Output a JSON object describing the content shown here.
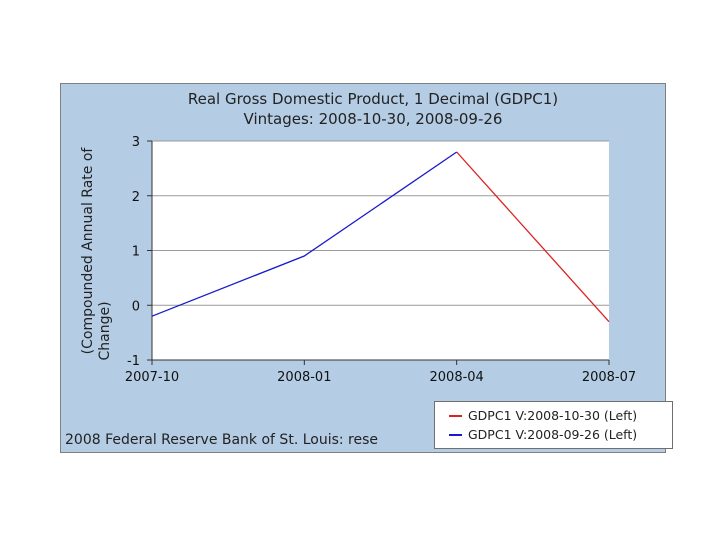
{
  "chart_data": {
    "type": "line",
    "title_lines": [
      "Real Gross Domestic Product, 1 Decimal (GDPC1)",
      "Vintages: 2008-10-30, 2008-09-26"
    ],
    "ylabel_lines": [
      "(Compounded Annual Rate of",
      "Change)"
    ],
    "xlabel": "",
    "x_ticks": [
      "2007-10",
      "2008-01",
      "2008-04",
      "2008-07"
    ],
    "y_ticks": [
      "-1",
      "0",
      "1",
      "2",
      "3"
    ],
    "ylim": [
      -1,
      3
    ],
    "grid": true,
    "legend_position": "bottom-right",
    "series": [
      {
        "name": "GDPC1 V:2008-10-30 (Left)",
        "color": "#dd2222",
        "points": [
          {
            "x": "2008-04",
            "y": 2.8
          },
          {
            "x": "2008-07",
            "y": -0.3
          }
        ]
      },
      {
        "name": "GDPC1 V:2008-09-26 (Left)",
        "color": "#1a1acc",
        "points": [
          {
            "x": "2007-10",
            "y": -0.2
          },
          {
            "x": "2008-01",
            "y": 0.9
          },
          {
            "x": "2008-04",
            "y": 2.8
          }
        ]
      }
    ]
  },
  "footer": {
    "copyright": "2008 Federal Reserve Bank of St. Louis: rese"
  }
}
